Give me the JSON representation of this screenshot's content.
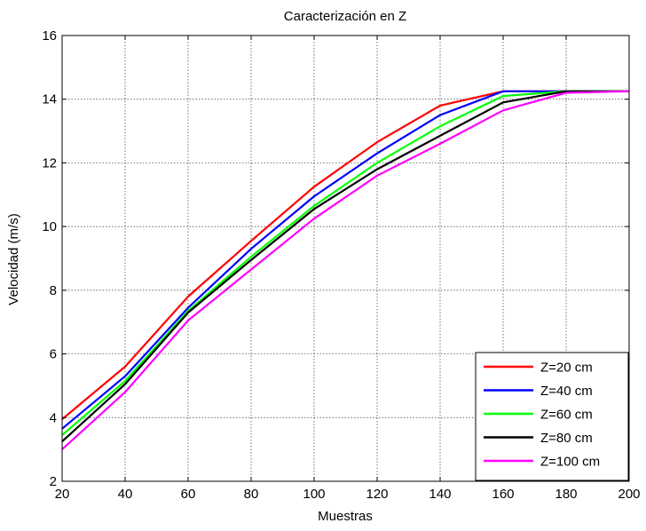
{
  "chart_data": {
    "type": "line",
    "title": "Caracterización en Z",
    "xlabel": "Muestras",
    "ylabel": "Velocidad (m/s)",
    "xlim": [
      20,
      200
    ],
    "ylim": [
      2,
      16
    ],
    "xticks": [
      20,
      40,
      60,
      80,
      100,
      120,
      140,
      160,
      180,
      200
    ],
    "yticks": [
      2,
      4,
      6,
      8,
      10,
      12,
      14,
      16
    ],
    "grid": true,
    "legend_position": "bottom-right",
    "x": [
      20,
      40,
      60,
      80,
      100,
      120,
      140,
      160,
      180,
      200
    ],
    "series": [
      {
        "name": "Z=20 cm",
        "color": "#ff0000",
        "values": [
          3.95,
          5.6,
          7.8,
          9.55,
          11.25,
          12.65,
          13.8,
          14.25,
          14.25,
          14.25
        ]
      },
      {
        "name": "Z=40 cm",
        "color": "#0000ff",
        "values": [
          3.65,
          5.3,
          7.45,
          9.3,
          10.95,
          12.3,
          13.5,
          14.25,
          14.25,
          14.25
        ]
      },
      {
        "name": "Z=60 cm",
        "color": "#00ff00",
        "values": [
          3.45,
          5.15,
          7.35,
          9.05,
          10.65,
          12.0,
          13.15,
          14.1,
          14.25,
          14.25
        ]
      },
      {
        "name": "Z=80 cm",
        "color": "#000000",
        "values": [
          3.25,
          5.05,
          7.3,
          8.95,
          10.55,
          11.8,
          12.85,
          13.9,
          14.25,
          14.25
        ]
      },
      {
        "name": "Z=100 cm",
        "color": "#ff00ff",
        "values": [
          3.0,
          4.8,
          7.05,
          8.65,
          10.25,
          11.6,
          12.6,
          13.65,
          14.2,
          14.25
        ]
      }
    ]
  }
}
